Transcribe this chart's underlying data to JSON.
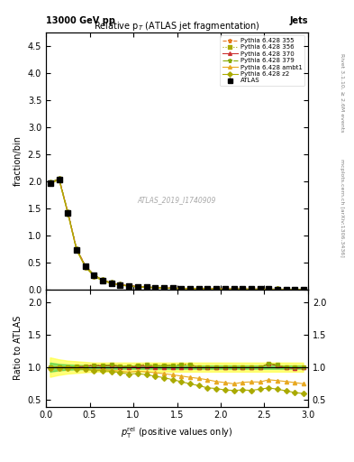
{
  "title_top": "13000 GeV pp",
  "title_right": "Jets",
  "plot_title": "Relative p$_T$ (ATLAS jet fragmentation)",
  "watermark": "ATLAS_2019_I1740909",
  "right_label_top": "Rivet 3.1.10, ≥ 2.6M events",
  "right_label_bot": "mcplots.cern.ch [arXiv:1306.3436]",
  "ylabel_main": "fraction/bin",
  "ylabel_ratio": "Ratio to ATLAS",
  "xlabel": "$p_{\\mathrm{T}}^{\\mathrm{rel}}$ (positive values only)",
  "xlim": [
    0,
    3
  ],
  "ylim_main": [
    0,
    4.75
  ],
  "ylim_ratio": [
    0.4,
    2.2
  ],
  "main_yticks": [
    0,
    0.5,
    1.0,
    1.5,
    2.0,
    2.5,
    3.0,
    3.5,
    4.0,
    4.5
  ],
  "ratio_yticks": [
    0.5,
    1.0,
    1.5,
    2.0
  ],
  "x_data": [
    0.05,
    0.15,
    0.25,
    0.35,
    0.45,
    0.55,
    0.65,
    0.75,
    0.85,
    0.95,
    1.05,
    1.15,
    1.25,
    1.35,
    1.45,
    1.55,
    1.65,
    1.75,
    1.85,
    1.95,
    2.05,
    2.15,
    2.25,
    2.35,
    2.45,
    2.55,
    2.65,
    2.75,
    2.85,
    2.95
  ],
  "atlas_y": [
    1.97,
    2.04,
    1.42,
    0.74,
    0.43,
    0.26,
    0.17,
    0.12,
    0.09,
    0.07,
    0.055,
    0.045,
    0.038,
    0.032,
    0.027,
    0.023,
    0.02,
    0.018,
    0.016,
    0.014,
    0.013,
    0.012,
    0.011,
    0.01,
    0.009,
    0.008,
    0.0075,
    0.007,
    0.0065,
    0.006
  ],
  "atlas_err": [
    0.05,
    0.04,
    0.03,
    0.02,
    0.015,
    0.01,
    0.008,
    0.006,
    0.005,
    0.004,
    0.003,
    0.003,
    0.002,
    0.002,
    0.002,
    0.002,
    0.002,
    0.001,
    0.001,
    0.001,
    0.001,
    0.001,
    0.001,
    0.001,
    0.001,
    0.001,
    0.001,
    0.001,
    0.001,
    0.001
  ],
  "py355_y": [
    1.97,
    2.05,
    1.43,
    0.75,
    0.44,
    0.27,
    0.175,
    0.125,
    0.092,
    0.071,
    0.057,
    0.047,
    0.039,
    0.033,
    0.028,
    0.024,
    0.021,
    0.018,
    0.016,
    0.014,
    0.013,
    0.012,
    0.011,
    0.01,
    0.009,
    0.0085,
    0.0078,
    0.007,
    0.0065,
    0.006
  ],
  "py355_color": "#e87820",
  "py355_marker": "*",
  "py355_ls": "--",
  "py356_y": [
    1.98,
    2.05,
    1.43,
    0.75,
    0.44,
    0.27,
    0.175,
    0.125,
    0.092,
    0.071,
    0.057,
    0.047,
    0.039,
    0.033,
    0.028,
    0.024,
    0.021,
    0.018,
    0.016,
    0.014,
    0.013,
    0.012,
    0.011,
    0.01,
    0.009,
    0.0085,
    0.0078,
    0.007,
    0.0065,
    0.006
  ],
  "py356_color": "#aaaa00",
  "py356_marker": "s",
  "py356_ls": ":",
  "py370_y": [
    1.975,
    2.045,
    1.425,
    0.748,
    0.438,
    0.268,
    0.174,
    0.124,
    0.091,
    0.07,
    0.056,
    0.046,
    0.038,
    0.032,
    0.027,
    0.023,
    0.02,
    0.018,
    0.016,
    0.014,
    0.013,
    0.012,
    0.011,
    0.01,
    0.009,
    0.0085,
    0.0077,
    0.007,
    0.0064,
    0.006
  ],
  "py370_color": "#cc3333",
  "py370_marker": "^",
  "py370_ls": "-",
  "py379_y": [
    1.98,
    2.05,
    1.43,
    0.75,
    0.44,
    0.27,
    0.175,
    0.125,
    0.092,
    0.071,
    0.057,
    0.047,
    0.039,
    0.033,
    0.028,
    0.024,
    0.021,
    0.018,
    0.016,
    0.014,
    0.013,
    0.012,
    0.011,
    0.01,
    0.009,
    0.0085,
    0.0078,
    0.007,
    0.0065,
    0.006
  ],
  "py379_color": "#88aa00",
  "py379_marker": "*",
  "py379_ls": "-.",
  "pyambt1_y": [
    1.96,
    2.03,
    1.41,
    0.73,
    0.42,
    0.25,
    0.165,
    0.115,
    0.085,
    0.065,
    0.052,
    0.042,
    0.035,
    0.029,
    0.024,
    0.02,
    0.017,
    0.015,
    0.013,
    0.011,
    0.01,
    0.009,
    0.0085,
    0.0078,
    0.007,
    0.0065,
    0.006,
    0.0055,
    0.005,
    0.0045
  ],
  "pyambt1_color": "#e8a820",
  "pyambt1_marker": "^",
  "pyambt1_ls": "-",
  "pyz2_y": [
    1.96,
    2.03,
    1.405,
    0.728,
    0.418,
    0.248,
    0.162,
    0.113,
    0.083,
    0.063,
    0.05,
    0.04,
    0.033,
    0.027,
    0.022,
    0.018,
    0.015,
    0.013,
    0.011,
    0.0095,
    0.0085,
    0.0078,
    0.0072,
    0.0065,
    0.006,
    0.0055,
    0.005,
    0.0045,
    0.004,
    0.0036
  ],
  "pyz2_color": "#aaaa00",
  "pyz2_marker": "D",
  "pyz2_ls": "-",
  "band_yellow_low": [
    0.85,
    0.88,
    0.9,
    0.91,
    0.92,
    0.93,
    0.93,
    0.93,
    0.93,
    0.93,
    0.93,
    0.93,
    0.93,
    0.93,
    0.93,
    0.93,
    0.93,
    0.93,
    0.93,
    0.93,
    0.93,
    0.93,
    0.93,
    0.93,
    0.93,
    0.93,
    0.93,
    0.93,
    0.93,
    0.93
  ],
  "band_yellow_high": [
    1.15,
    1.12,
    1.1,
    1.09,
    1.08,
    1.07,
    1.07,
    1.07,
    1.07,
    1.07,
    1.07,
    1.07,
    1.07,
    1.07,
    1.07,
    1.07,
    1.07,
    1.07,
    1.07,
    1.07,
    1.07,
    1.07,
    1.07,
    1.07,
    1.07,
    1.07,
    1.07,
    1.07,
    1.07,
    1.07
  ],
  "band_green_low": [
    0.93,
    0.95,
    0.96,
    0.965,
    0.97,
    0.975,
    0.975,
    0.975,
    0.975,
    0.975,
    0.975,
    0.975,
    0.975,
    0.975,
    0.975,
    0.975,
    0.975,
    0.975,
    0.975,
    0.975,
    0.975,
    0.975,
    0.975,
    0.975,
    0.975,
    0.975,
    0.975,
    0.975,
    0.975,
    0.975
  ],
  "band_green_high": [
    1.07,
    1.05,
    1.04,
    1.035,
    1.03,
    1.025,
    1.025,
    1.025,
    1.025,
    1.025,
    1.025,
    1.025,
    1.025,
    1.025,
    1.025,
    1.025,
    1.025,
    1.025,
    1.025,
    1.025,
    1.025,
    1.025,
    1.025,
    1.025,
    1.025,
    1.025,
    1.025,
    1.025,
    1.025,
    1.025
  ]
}
